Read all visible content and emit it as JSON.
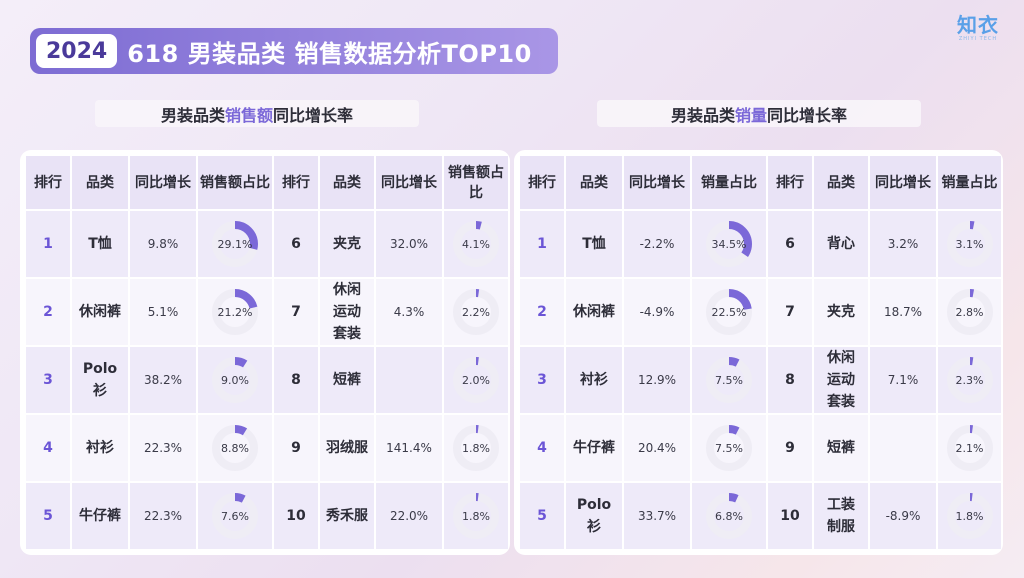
{
  "header": {
    "year": "2024",
    "title": "618 男装品类 销售数据分析TOP10",
    "logo_main": "知衣",
    "logo_sub": "ZHIYI TECH"
  },
  "colors": {
    "accent": "#7b68d8",
    "ring_track": "#efedf5",
    "ring_fill": "#7b68d8"
  },
  "left_section": {
    "label_prefix": "男装品类",
    "label_accent": "销售额",
    "label_suffix": "同比增长率",
    "headers": {
      "rank": "排行",
      "category": "品类",
      "yoy": "同比增长",
      "share": "销售额占比",
      "rank2": "排行",
      "category2": "品类",
      "yoy2": "同比增长",
      "share2": "销售额占比"
    }
  },
  "right_section": {
    "label_prefix": "男装品类",
    "label_accent": "销量",
    "label_suffix": "同比增长率",
    "headers": {
      "rank": "排行",
      "category": "品类",
      "yoy": "同比增长",
      "share": "销量占比",
      "rank2": "排行",
      "category2": "品类",
      "yoy2": "同比增长",
      "share2": "销量占比"
    }
  },
  "chart_data": [
    {
      "type": "table",
      "title": "男装品类销售额同比增长率",
      "columns": [
        "排行",
        "品类",
        "同比增长",
        "销售额占比"
      ],
      "rows": [
        {
          "rank": "1",
          "category": "T恤",
          "yoy": "9.8%",
          "share_label": "29.1%",
          "share": 29.1
        },
        {
          "rank": "2",
          "category": "休闲裤",
          "yoy": "5.1%",
          "share_label": "21.2%",
          "share": 21.2
        },
        {
          "rank": "3",
          "category": "Polo衫",
          "yoy": "38.2%",
          "share_label": "9.0%",
          "share": 9.0
        },
        {
          "rank": "4",
          "category": "衬衫",
          "yoy": "22.3%",
          "share_label": "8.8%",
          "share": 8.8
        },
        {
          "rank": "5",
          "category": "牛仔裤",
          "yoy": "22.3%",
          "share_label": "7.6%",
          "share": 7.6
        },
        {
          "rank": "6",
          "category": "夹克",
          "yoy": "32.0%",
          "share_label": "4.1%",
          "share": 4.1
        },
        {
          "rank": "7",
          "category": "休闲运动套装",
          "yoy": "4.3%",
          "share_label": "2.2%",
          "share": 2.2
        },
        {
          "rank": "8",
          "category": "短裤",
          "yoy": "",
          "share_label": "2.0%",
          "share": 2.0
        },
        {
          "rank": "9",
          "category": "羽绒服",
          "yoy": "141.4%",
          "share_label": "1.8%",
          "share": 1.8
        },
        {
          "rank": "10",
          "category": "秀禾服",
          "yoy": "22.0%",
          "share_label": "1.8%",
          "share": 1.8
        }
      ]
    },
    {
      "type": "table",
      "title": "男装品类销量同比增长率",
      "columns": [
        "排行",
        "品类",
        "同比增长",
        "销量占比"
      ],
      "rows": [
        {
          "rank": "1",
          "category": "T恤",
          "yoy": "-2.2%",
          "share_label": "34.5%",
          "share": 34.5
        },
        {
          "rank": "2",
          "category": "休闲裤",
          "yoy": "-4.9%",
          "share_label": "22.5%",
          "share": 22.5
        },
        {
          "rank": "3",
          "category": "衬衫",
          "yoy": "12.9%",
          "share_label": "7.5%",
          "share": 7.5
        },
        {
          "rank": "4",
          "category": "牛仔裤",
          "yoy": "20.4%",
          "share_label": "7.5%",
          "share": 7.5
        },
        {
          "rank": "5",
          "category": "Polo衫",
          "yoy": "33.7%",
          "share_label": "6.8%",
          "share": 6.8
        },
        {
          "rank": "6",
          "category": "背心",
          "yoy": "3.2%",
          "share_label": "3.1%",
          "share": 3.1
        },
        {
          "rank": "7",
          "category": "夹克",
          "yoy": "18.7%",
          "share_label": "2.8%",
          "share": 2.8
        },
        {
          "rank": "8",
          "category": "休闲运动套装",
          "yoy": "7.1%",
          "share_label": "2.3%",
          "share": 2.3
        },
        {
          "rank": "9",
          "category": "短裤",
          "yoy": "",
          "share_label": "2.1%",
          "share": 2.1
        },
        {
          "rank": "10",
          "category": "工装制服",
          "yoy": "-8.9%",
          "share_label": "1.8%",
          "share": 1.8
        }
      ]
    }
  ]
}
